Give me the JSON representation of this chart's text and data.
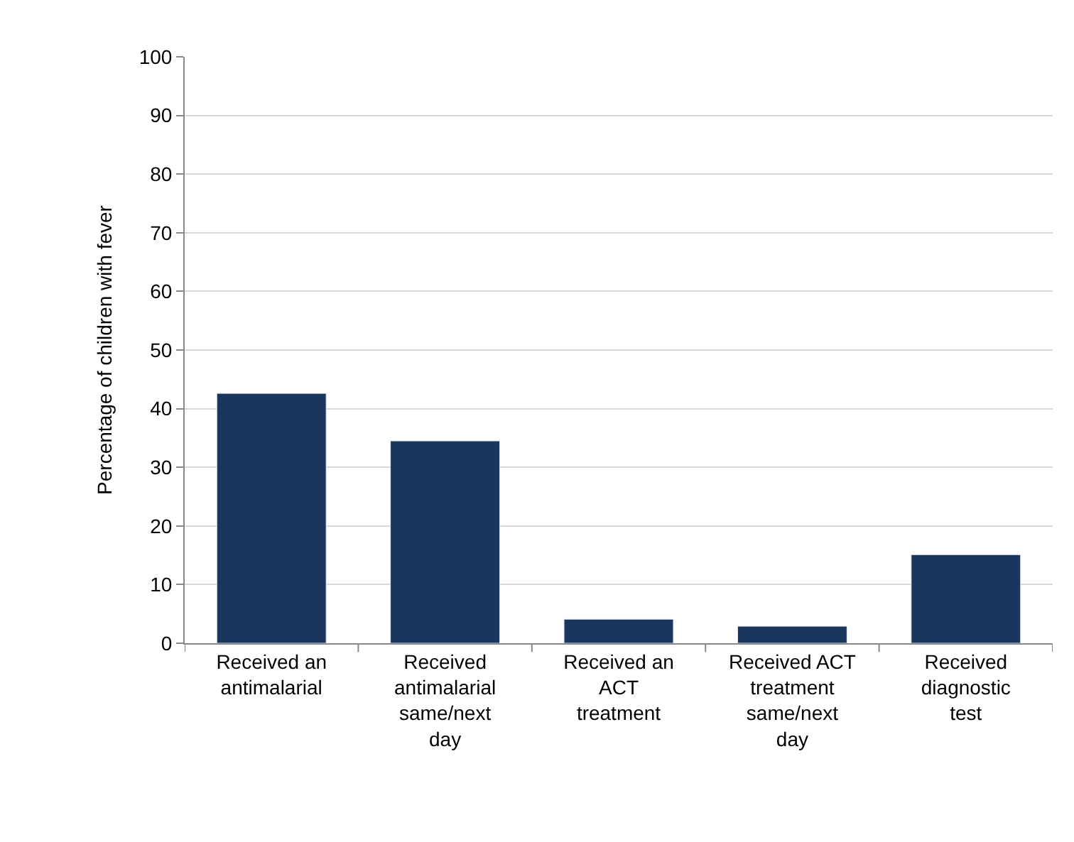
{
  "chart_data": {
    "type": "bar",
    "ylabel": "Percentage of children with fever",
    "categories": [
      "Received an antimalarial",
      "Received antimalarial same/next day",
      "Received an ACT treatment",
      "Received ACT treatment same/next day",
      "Received diagnostic test"
    ],
    "values": [
      42.6,
      34.5,
      4.1,
      2.9,
      15.1
    ],
    "color": "#1a365d",
    "ylim": [
      0,
      100
    ],
    "yticks": [
      0,
      10,
      20,
      30,
      40,
      50,
      60,
      70,
      80,
      90,
      100
    ],
    "grid": "y"
  }
}
